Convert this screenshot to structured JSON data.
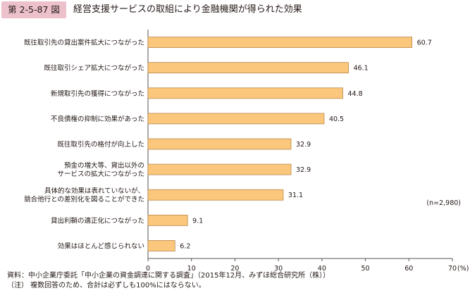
{
  "header": {
    "figure_number": "第 2-5-87 図",
    "title": "経営支援サービスの取組により金融機関が得られた効果"
  },
  "colors": {
    "bar_fill": "#fbc77c",
    "bar_stroke": "#b8874a",
    "badge": "#ecc1cc",
    "axis": "#555555"
  },
  "chart_data": {
    "type": "bar",
    "orientation": "horizontal",
    "categories": [
      [
        "既往取引先の貸出案件拡大につながった"
      ],
      [
        "既往取引シェア拡大につながった"
      ],
      [
        "新規取引先の獲得につながった"
      ],
      [
        "不良債権の抑制に効果があった"
      ],
      [
        "既往取引先の格付が向上した"
      ],
      [
        "預金の増大等、貸出以外の",
        "サービスの拡大につながった"
      ],
      [
        "具体的な効果は表れていないが、",
        "競合他行との差別化を図ることができた"
      ],
      [
        "貸出利鞘の適正化につながった"
      ],
      [
        "効果はほとんど感じられない"
      ]
    ],
    "values": [
      60.7,
      46.1,
      44.8,
      40.5,
      32.9,
      32.9,
      31.1,
      9.1,
      6.2
    ],
    "value_labels": [
      "60.7",
      "46.1",
      "44.8",
      "40.5",
      "32.9",
      "32.9",
      "31.1",
      "9.1",
      "6.2"
    ],
    "xlim": [
      0,
      70
    ],
    "xticks": [
      0,
      10,
      20,
      30,
      40,
      50,
      60,
      70
    ],
    "x_unit": "(%)",
    "annotation": "(n=2,980)",
    "grid": false,
    "legend": "none"
  },
  "notes": {
    "source": "資料：中小企業庁委託「中小企業の資金調達に関する調査」（2015年12月、みずほ総合研究所（株））",
    "remark": "（注） 複数回答のため、合計は必ずしも100%にはならない。"
  }
}
